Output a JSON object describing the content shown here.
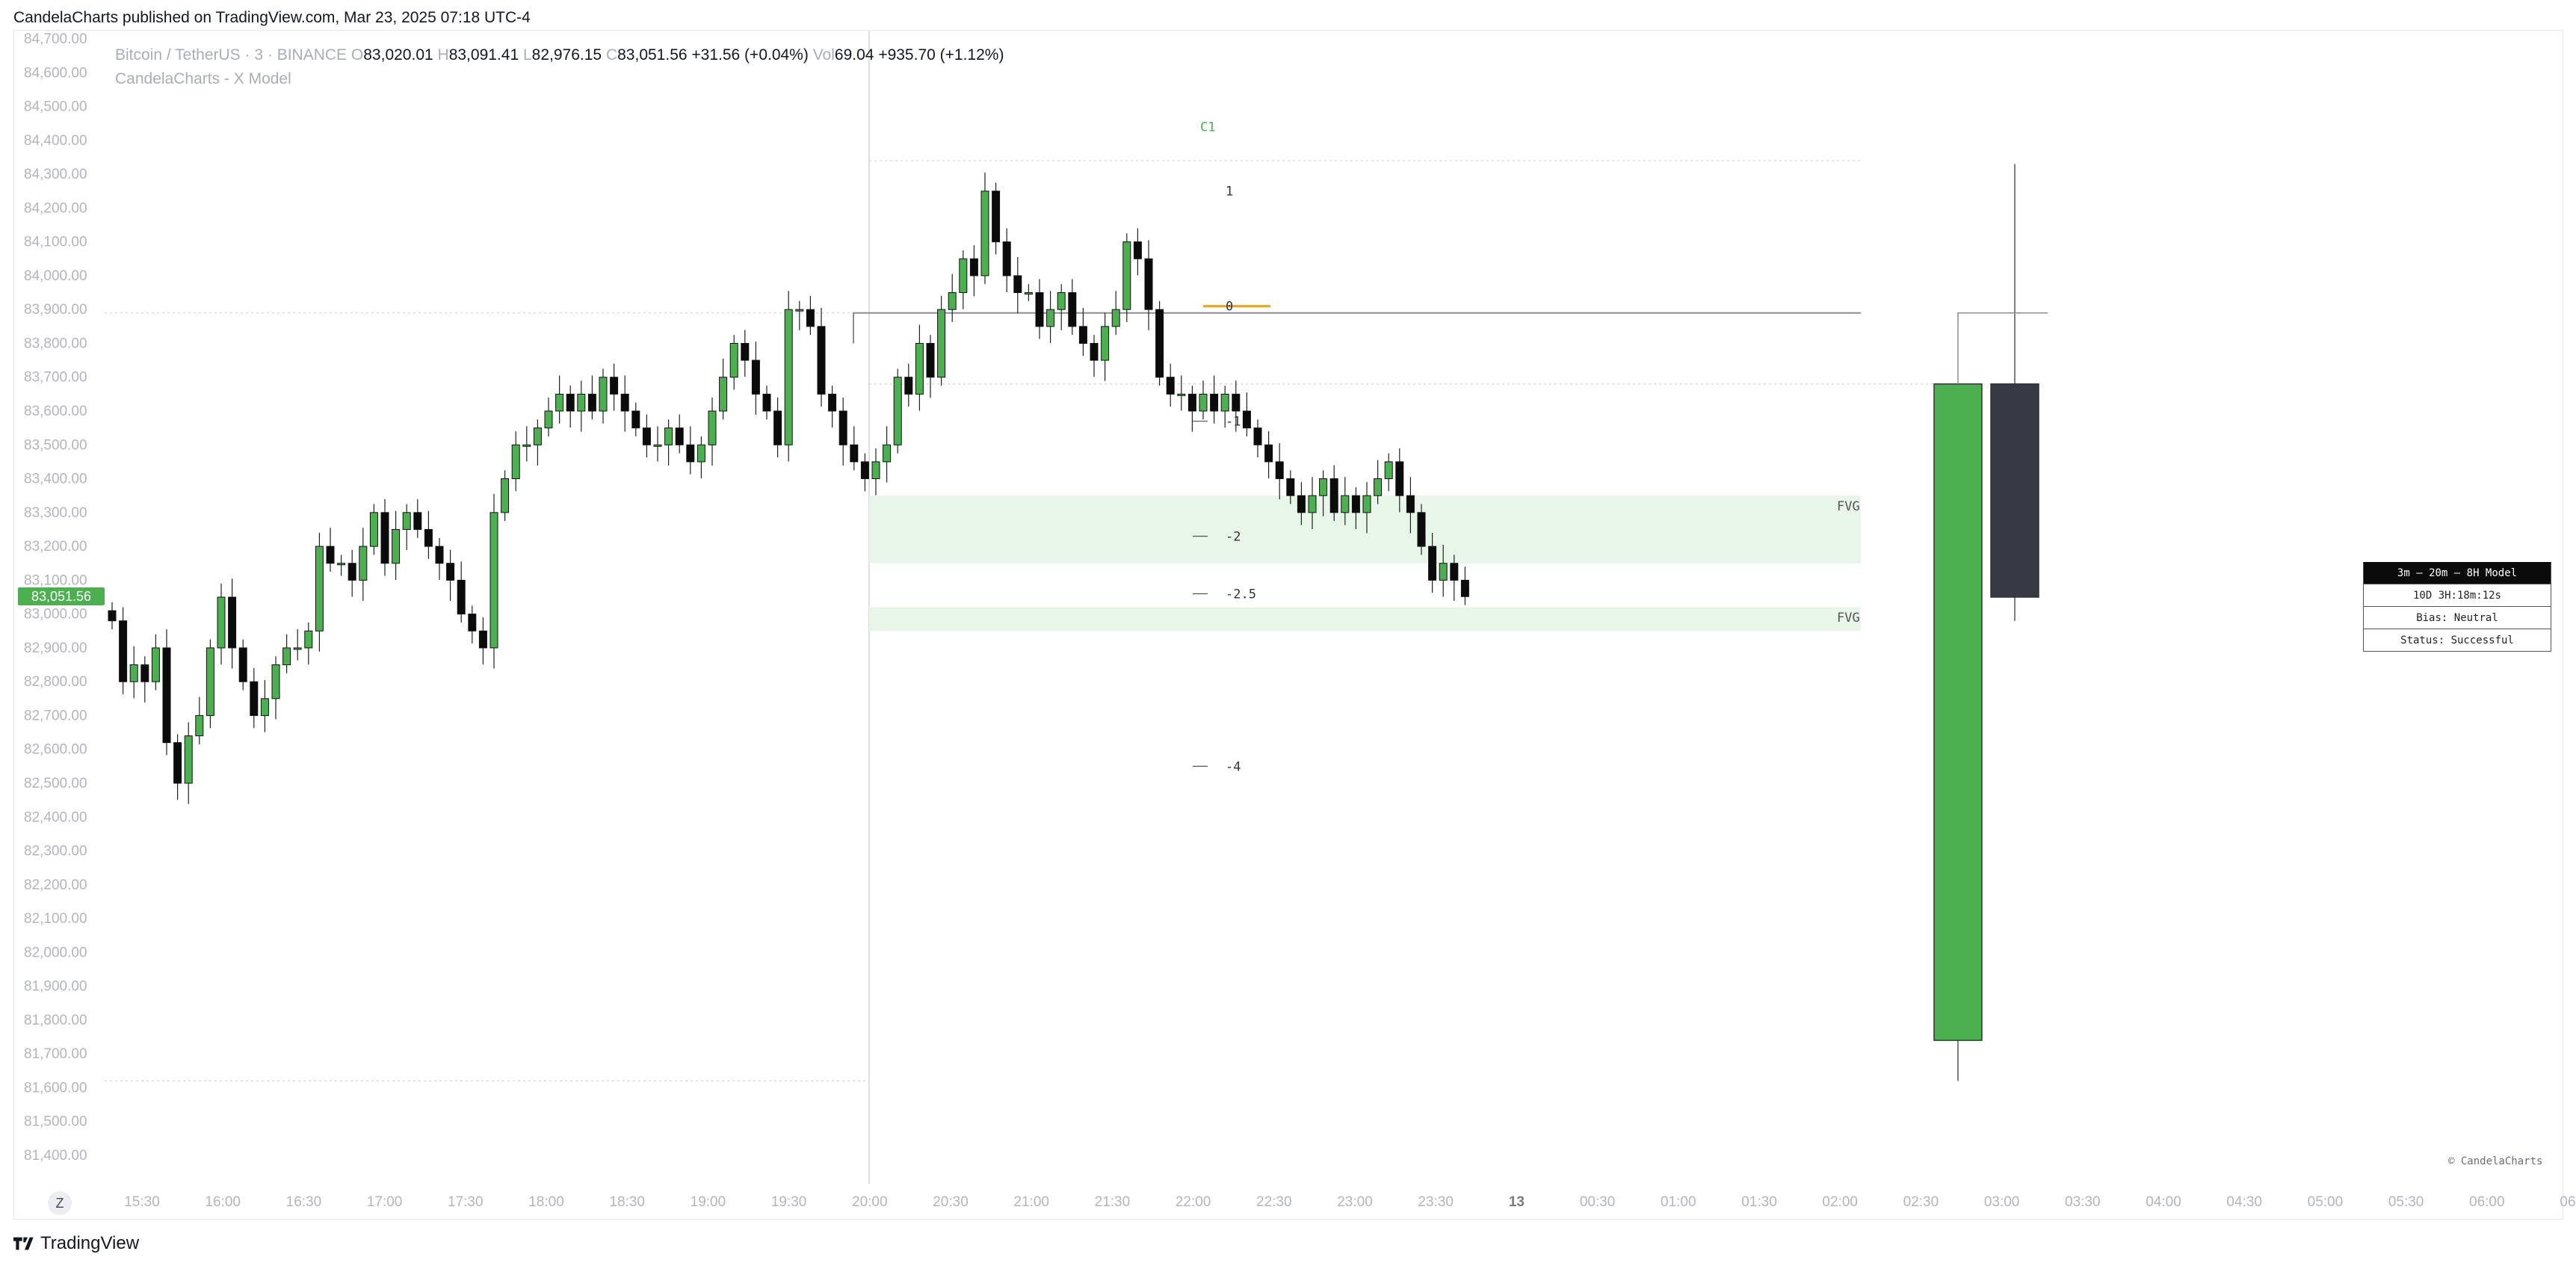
{
  "header": {
    "published": "CandelaCharts published on TradingView.com, Mar 23, 2025 07:18 UTC-4"
  },
  "legend": {
    "symbol": "Bitcoin / TetherUS · 3 · BINANCE",
    "o_label": "O",
    "o": "83,020.01",
    "h_label": "H",
    "h": "83,091.41",
    "l_label": "L",
    "l": "82,976.15",
    "c_label": "C",
    "c": "83,051.56",
    "change": "+31.56 (+0.04%)",
    "vol_label": "Vol",
    "vol": "69.04",
    "vol_change": "+935.70 (+1.12%)",
    "indicator": "CandelaCharts - X Model"
  },
  "price_badge": "83,051.56",
  "z_button": "Z",
  "footer": {
    "brand": "TradingView"
  },
  "copyright": "© CandelaCharts",
  "info_table": {
    "title": "3m – 20m – 8H Model",
    "rows": [
      "10D 3H:18m:12s",
      "Bias: Neutral",
      "Status: Successful"
    ]
  },
  "colors": {
    "up": "#4caf50",
    "down": "#0b0b0b",
    "fvg": "#e8f5e9",
    "htf_down": "#363a45",
    "level": "#f0a030"
  },
  "chart_data": {
    "type": "candlestick",
    "yaxis": {
      "min": 81400,
      "max": 84700,
      "step": 100,
      "tick_labels": [
        "84,700.00",
        "84,600.00",
        "84,500.00",
        "84,400.00",
        "84,300.00",
        "84,200.00",
        "84,100.00",
        "84,000.00",
        "83,900.00",
        "83,800.00",
        "83,700.00",
        "83,600.00",
        "83,500.00",
        "83,400.00",
        "83,300.00",
        "83,200.00",
        "83,100.00",
        "83,000.00",
        "82,900.00",
        "82,800.00",
        "82,700.00",
        "82,600.00",
        "82,500.00",
        "82,400.00",
        "82,300.00",
        "82,200.00",
        "82,100.00",
        "82,000.00",
        "81,900.00",
        "81,800.00",
        "81,700.00",
        "81,600.00",
        "81,500.00",
        "81,400.00"
      ]
    },
    "xaxis": {
      "tick_labels": [
        "15:30",
        "16:00",
        "16:30",
        "17:00",
        "17:30",
        "18:00",
        "18:30",
        "19:00",
        "19:30",
        "20:00",
        "20:30",
        "21:00",
        "21:30",
        "22:00",
        "22:30",
        "23:00",
        "23:30",
        "13",
        "00:30",
        "01:00",
        "01:30",
        "02:00",
        "02:30",
        "03:00",
        "03:30",
        "04:00",
        "04:30",
        "05:00",
        "05:30",
        "06:00",
        "06"
      ]
    },
    "candles_close": [
      82980,
      82800,
      82850,
      82800,
      82900,
      82620,
      82500,
      82640,
      82700,
      82900,
      83050,
      82900,
      82800,
      82700,
      82750,
      82850,
      82900,
      82900,
      82950,
      83200,
      83150,
      83150,
      83100,
      83200,
      83300,
      83150,
      83250,
      83300,
      83250,
      83200,
      83150,
      83100,
      83000,
      82950,
      82900,
      83300,
      83400,
      83500,
      83500,
      83550,
      83600,
      83650,
      83600,
      83650,
      83600,
      83700,
      83650,
      83600,
      83550,
      83500,
      83500,
      83550,
      83500,
      83450,
      83500,
      83600,
      83700,
      83800,
      83750,
      83650,
      83600,
      83500,
      83900,
      83900,
      83850,
      83650,
      83600,
      83500,
      83450,
      83400,
      83450,
      83500,
      83700,
      83650,
      83800,
      83700,
      83900,
      83950,
      84050,
      84000,
      84250,
      84100,
      84000,
      83950,
      83950,
      83850,
      83900,
      83950,
      83850,
      83800,
      83750,
      83850,
      83900,
      84100,
      84050,
      83900,
      83700,
      83650,
      83650,
      83600,
      83650,
      83600,
      83650,
      83600,
      83550,
      83500,
      83450,
      83400,
      83350,
      83300,
      83350,
      83400,
      83300,
      83350,
      83300,
      83350,
      83400,
      83450,
      83350,
      83300,
      83200,
      83100,
      83150,
      83100,
      83051.56
    ],
    "labels": [
      "C1",
      "1",
      "0",
      "-1",
      "-2",
      "-2.5",
      "-4",
      "FVG",
      "FVG"
    ],
    "htf_candles": [
      {
        "open": 81740,
        "high": 83680,
        "low": 81620,
        "close": 83680
      },
      {
        "open": 83680,
        "high": 84330,
        "low": 82980,
        "close": 83050
      }
    ]
  }
}
